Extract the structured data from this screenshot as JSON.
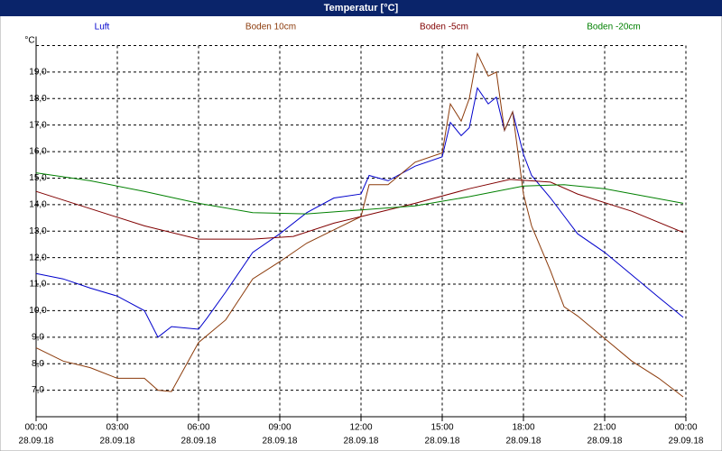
{
  "chart_data": {
    "type": "line",
    "title": "Temperatur [°C]",
    "y_unit": "°C",
    "xlim": [
      0,
      24
    ],
    "xticks": [
      {
        "value": 0,
        "label": "00:00"
      },
      {
        "value": 3,
        "label": "03:00"
      },
      {
        "value": 6,
        "label": "06:00"
      },
      {
        "value": 9,
        "label": "09:00"
      },
      {
        "value": 12,
        "label": "12:00"
      },
      {
        "value": 15,
        "label": "15:00"
      },
      {
        "value": 18,
        "label": "18:00"
      },
      {
        "value": 21,
        "label": "21:00"
      },
      {
        "value": 24,
        "label": "00:00"
      }
    ],
    "xtick_dates": [
      "28.09.18",
      "28.09.18",
      "28.09.18",
      "28.09.18",
      "28.09.18",
      "28.09.18",
      "28.09.18",
      "28.09.18",
      "29.09.18"
    ],
    "ylim": [
      6,
      20
    ],
    "yticks": [
      {
        "value": 7,
        "label": "7,0"
      },
      {
        "value": 8,
        "label": "8,0"
      },
      {
        "value": 9,
        "label": "9,0"
      },
      {
        "value": 10,
        "label": "10,0"
      },
      {
        "value": 11,
        "label": "11,0"
      },
      {
        "value": 12,
        "label": "12,0"
      },
      {
        "value": 13,
        "label": "13,0"
      },
      {
        "value": 14,
        "label": "14,0"
      },
      {
        "value": 15,
        "label": "15,0"
      },
      {
        "value": 16,
        "label": "16,0"
      },
      {
        "value": 17,
        "label": "17,0"
      },
      {
        "value": 18,
        "label": "18,0"
      },
      {
        "value": 19,
        "label": "19,0"
      }
    ],
    "grid": true,
    "series": [
      {
        "name": "Luft",
        "color": "#0000cc",
        "x": [
          0,
          1,
          2,
          3,
          4,
          4.5,
          5,
          6,
          6.3,
          7,
          8,
          9,
          10,
          11,
          12,
          12.3,
          13,
          14,
          15,
          15.3,
          15.7,
          16,
          16.3,
          16.7,
          17,
          17.3,
          17.6,
          18,
          18.3,
          19,
          20,
          21,
          22,
          23,
          23.9
        ],
        "values": [
          11.4,
          11.2,
          10.85,
          10.55,
          10.0,
          9.0,
          9.4,
          9.3,
          9.7,
          10.7,
          12.2,
          12.9,
          13.7,
          14.25,
          14.4,
          15.1,
          14.9,
          15.45,
          15.8,
          17.1,
          16.6,
          16.9,
          18.4,
          17.8,
          18.05,
          16.8,
          17.5,
          15.9,
          15.1,
          14.25,
          12.9,
          12.2,
          11.35,
          10.5,
          9.75
        ]
      },
      {
        "name": "Boden 10cm",
        "color": "#8b3a0a",
        "x": [
          0,
          1,
          2,
          3,
          4,
          4.5,
          5,
          6,
          7,
          8,
          9,
          10,
          11,
          12,
          12.3,
          13,
          14,
          15,
          15.3,
          15.7,
          16,
          16.3,
          16.7,
          17,
          17.3,
          17.6,
          18,
          18.3,
          19,
          19.5,
          20,
          21,
          22,
          23,
          23.9
        ],
        "values": [
          8.6,
          8.1,
          7.85,
          7.45,
          7.45,
          7.0,
          6.95,
          8.8,
          9.65,
          11.2,
          11.85,
          12.55,
          13.05,
          13.55,
          14.75,
          14.75,
          15.6,
          15.95,
          17.8,
          17.15,
          18.0,
          19.7,
          18.85,
          19.0,
          16.8,
          17.5,
          14.4,
          13.2,
          11.5,
          10.15,
          9.8,
          8.95,
          8.1,
          7.45,
          6.75
        ]
      },
      {
        "name": "Boden -5cm",
        "color": "#800000",
        "x": [
          0,
          2,
          4,
          6,
          8,
          9.5,
          11,
          12,
          14,
          16,
          17.5,
          19,
          20,
          22,
          23.9
        ],
        "values": [
          14.5,
          13.85,
          13.2,
          12.7,
          12.7,
          12.8,
          13.3,
          13.55,
          14.05,
          14.6,
          14.95,
          14.85,
          14.4,
          13.75,
          12.95
        ]
      },
      {
        "name": "Boden -20cm",
        "color": "#008000",
        "x": [
          0,
          2,
          4,
          6,
          8,
          10,
          12,
          14,
          16,
          18,
          19.5,
          21,
          23.9
        ],
        "values": [
          15.2,
          14.9,
          14.5,
          14.05,
          13.7,
          13.65,
          13.8,
          13.95,
          14.3,
          14.7,
          14.75,
          14.6,
          14.05
        ]
      }
    ]
  }
}
